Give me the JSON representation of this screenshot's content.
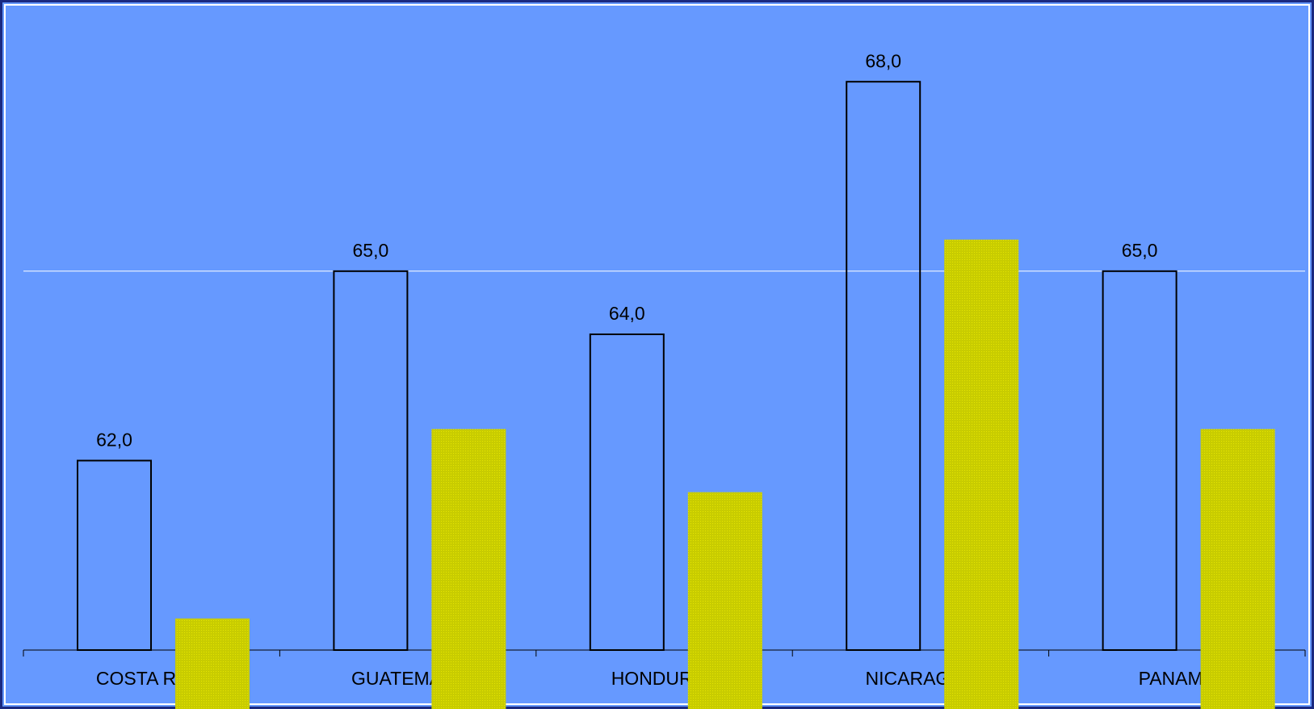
{
  "chart_data": {
    "type": "bar",
    "categories": [
      "COSTA RICA",
      "GUATEMALA",
      "HONDURAS",
      "NICARAGUA",
      "PANAMÁ"
    ],
    "series": [
      {
        "color": "#000000",
        "values": [
          62,
          65,
          64,
          68,
          65
        ],
        "value_labels": [
          "62,0",
          "65,0",
          "64,0",
          "68,0",
          "65,0"
        ]
      },
      {
        "color": "#c8cc00",
        "values": [
          59.5,
          62.5,
          61.5,
          65.5,
          62.5
        ]
      }
    ],
    "ylim": [
      59,
      69
    ],
    "yticks": [
      65
    ],
    "grid": true,
    "background": "#6699ff"
  }
}
